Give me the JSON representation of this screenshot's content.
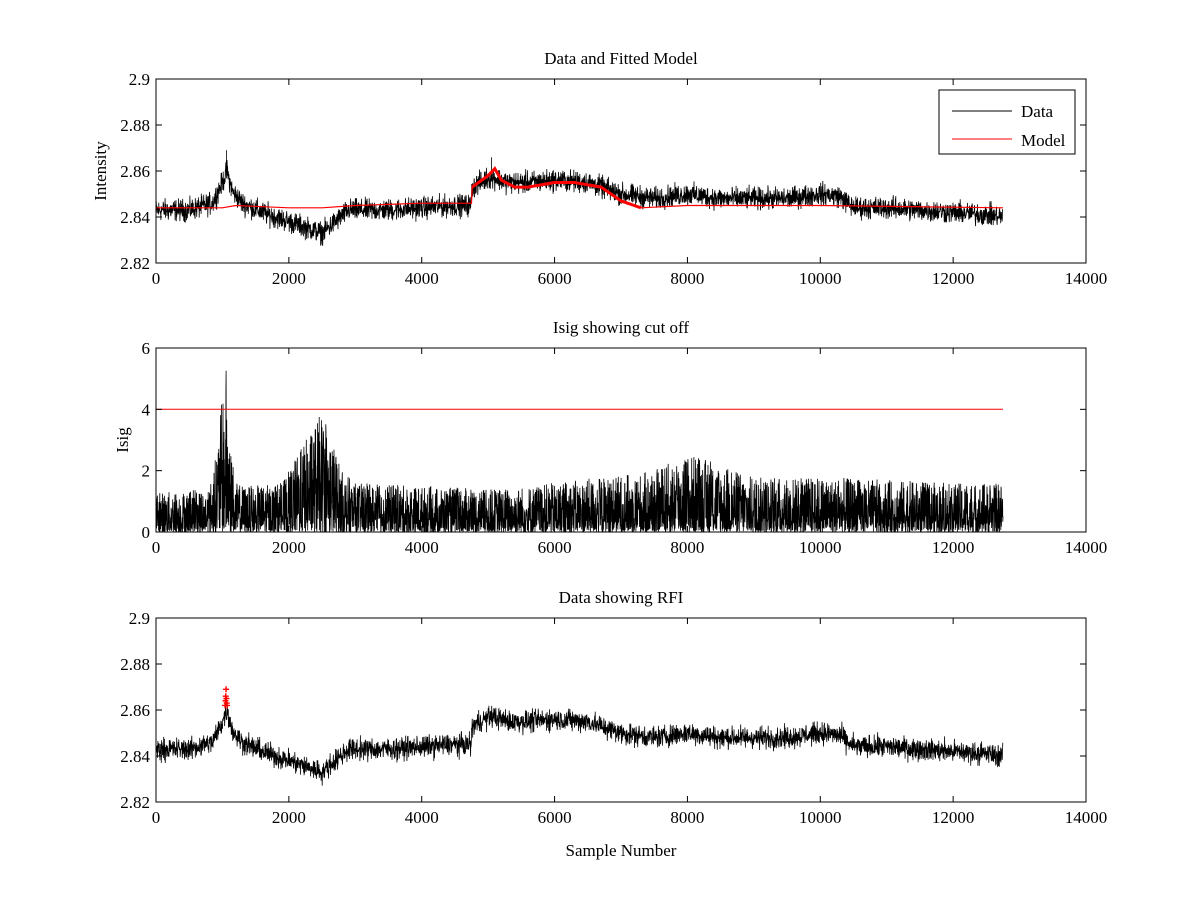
{
  "chart_data": [
    {
      "type": "line",
      "title": "Data and Fitted Model",
      "xlabel": "",
      "ylabel": "Intensity",
      "xlim": [
        0,
        14000
      ],
      "ylim": [
        2.82,
        2.9
      ],
      "x_ticks": [
        0,
        2000,
        4000,
        6000,
        8000,
        10000,
        12000,
        14000
      ],
      "y_ticks": [
        2.82,
        2.84,
        2.86,
        2.88,
        2.9
      ],
      "x_tick_labels": [
        "0",
        "2000",
        "4000",
        "6000",
        "8000",
        "10000",
        "12000",
        "14000"
      ],
      "y_tick_labels": [
        "2.82",
        "2.84",
        "2.86",
        "2.88",
        "2.9"
      ],
      "legend": {
        "position": "top-right",
        "entries": [
          "Data",
          "Model"
        ]
      },
      "series": [
        {
          "name": "Data",
          "color": "#000000",
          "x_range": [
            0,
            12750
          ],
          "mean_curve": {
            "x": [
              0,
              500,
              850,
              1000,
              1070,
              1150,
              1300,
              1600,
              2000,
              2300,
              2500,
              2700,
              2900,
              3500,
              4000,
              4500,
              4740,
              4760,
              5000,
              5100,
              5300,
              5600,
              6000,
              6500,
              7000,
              7500,
              8000,
              8500,
              9000,
              9500,
              10000,
              10300,
              10450,
              10550,
              11000,
              11500,
              12000,
              12500,
              12750
            ],
            "y": [
              2.843,
              2.843,
              2.846,
              2.855,
              2.86,
              2.851,
              2.846,
              2.842,
              2.838,
              2.835,
              2.833,
              2.838,
              2.843,
              2.843,
              2.844,
              2.845,
              2.845,
              2.853,
              2.857,
              2.857,
              2.855,
              2.855,
              2.856,
              2.855,
              2.85,
              2.848,
              2.85,
              2.848,
              2.848,
              2.848,
              2.85,
              2.849,
              2.845,
              2.844,
              2.844,
              2.843,
              2.842,
              2.841,
              2.84
            ]
          },
          "noise_amplitude": 0.0035,
          "spikes": {
            "x": [
              1060,
              5050
            ],
            "y": [
              2.869,
              2.866
            ]
          }
        },
        {
          "name": "Model",
          "color": "#ff0000",
          "x": [
            0,
            1000,
            1200,
            2000,
            2500,
            3000,
            4000,
            4750,
            4760,
            5000,
            5100,
            5200,
            5400,
            5600,
            5800,
            6000,
            6300,
            6700,
            7000,
            7300,
            8000,
            10000,
            12750
          ],
          "y": [
            2.844,
            2.844,
            2.845,
            2.844,
            2.844,
            2.845,
            2.846,
            2.846,
            2.853,
            2.858,
            2.861,
            2.856,
            2.853,
            2.853,
            2.854,
            2.855,
            2.855,
            2.853,
            2.847,
            2.844,
            2.845,
            2.845,
            2.844
          ]
        }
      ]
    },
    {
      "type": "line",
      "title": "Isig showing cut off",
      "xlabel": "",
      "ylabel": "Isig",
      "xlim": [
        0,
        14000
      ],
      "ylim": [
        0,
        6
      ],
      "x_ticks": [
        0,
        2000,
        4000,
        6000,
        8000,
        10000,
        12000,
        14000
      ],
      "y_ticks": [
        0,
        2,
        4,
        6
      ],
      "x_tick_labels": [
        "0",
        "2000",
        "4000",
        "6000",
        "8000",
        "10000",
        "12000",
        "14000"
      ],
      "y_tick_labels": [
        "0",
        "2",
        "4",
        "6"
      ],
      "series": [
        {
          "name": "Isig",
          "color": "#000000",
          "x_range": [
            0,
            12750
          ],
          "envelope": {
            "x": [
              0,
              800,
              900,
              1000,
              1060,
              1120,
              1200,
              1400,
              1900,
              2200,
              2400,
              2500,
              2600,
              2800,
              3000,
              4000,
              5000,
              6000,
              7500,
              8000,
              8500,
              9000,
              10000,
              11000,
              12000,
              12750
            ],
            "y": [
              1.3,
              1.4,
              2.5,
              4.5,
              5.5,
              3.0,
              1.6,
              1.5,
              1.6,
              2.8,
              3.6,
              3.9,
              3.4,
              2.0,
              1.6,
              1.5,
              1.4,
              1.6,
              2.0,
              2.6,
              2.2,
              1.8,
              1.8,
              1.7,
              1.6,
              1.6
            ]
          }
        },
        {
          "name": "Cut off",
          "color": "#ff0000",
          "x": [
            0,
            12750
          ],
          "y": [
            4,
            4
          ]
        }
      ]
    },
    {
      "type": "line",
      "title": "Data showing RFI",
      "xlabel": "Sample Number",
      "ylabel": "",
      "xlim": [
        0,
        14000
      ],
      "ylim": [
        2.82,
        2.9
      ],
      "x_ticks": [
        0,
        2000,
        4000,
        6000,
        8000,
        10000,
        12000,
        14000
      ],
      "y_ticks": [
        2.82,
        2.84,
        2.86,
        2.88,
        2.9
      ],
      "x_tick_labels": [
        "0",
        "2000",
        "4000",
        "6000",
        "8000",
        "10000",
        "12000",
        "14000"
      ],
      "y_tick_labels": [
        "2.82",
        "2.84",
        "2.86",
        "2.88",
        "2.9"
      ],
      "series": [
        {
          "name": "Data",
          "color": "#000000",
          "x_range": [
            0,
            12750
          ],
          "mean_curve": {
            "x": [
              0,
              500,
              850,
              1000,
              1070,
              1150,
              1300,
              1600,
              2000,
              2300,
              2500,
              2700,
              2900,
              3500,
              4000,
              4500,
              4740,
              4760,
              5000,
              5100,
              5300,
              5600,
              6000,
              6500,
              7000,
              7500,
              8000,
              8500,
              9000,
              9500,
              10000,
              10300,
              10450,
              10550,
              11000,
              11500,
              12000,
              12500,
              12750
            ],
            "y": [
              2.843,
              2.843,
              2.846,
              2.855,
              2.86,
              2.851,
              2.846,
              2.842,
              2.838,
              2.835,
              2.833,
              2.838,
              2.843,
              2.843,
              2.844,
              2.845,
              2.845,
              2.853,
              2.857,
              2.857,
              2.855,
              2.855,
              2.856,
              2.855,
              2.85,
              2.848,
              2.85,
              2.848,
              2.848,
              2.848,
              2.85,
              2.849,
              2.845,
              2.844,
              2.844,
              2.843,
              2.842,
              2.841,
              2.84
            ]
          },
          "noise_amplitude": 0.0035
        },
        {
          "name": "RFI",
          "color": "#ff0000",
          "marker": "+",
          "x": [
            1040,
            1045,
            1050,
            1055,
            1060,
            1065,
            1070
          ],
          "y": [
            2.862,
            2.864,
            2.866,
            2.869,
            2.865,
            2.863,
            2.862
          ]
        }
      ]
    }
  ]
}
